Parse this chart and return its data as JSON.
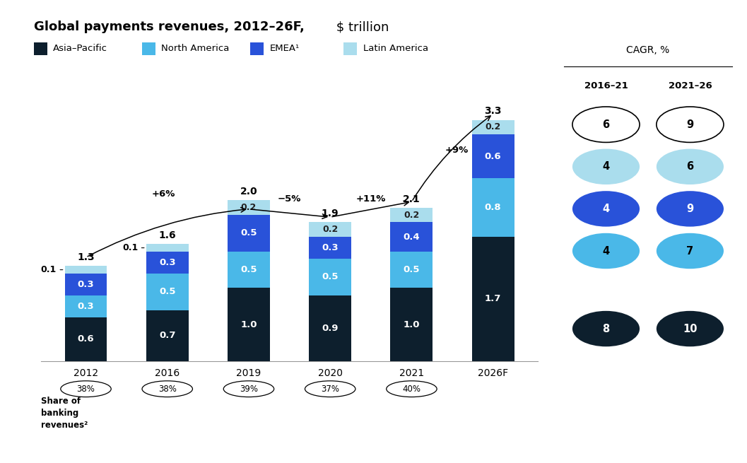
{
  "title_bold": "Global payments revenues, 2012–26F,",
  "title_normal": " $ trillion",
  "categories": [
    "2012",
    "2016",
    "2019",
    "2020",
    "2021",
    "2026F"
  ],
  "asia_pacific": [
    0.6,
    0.7,
    1.0,
    0.9,
    1.0,
    1.7
  ],
  "north_america": [
    0.3,
    0.5,
    0.5,
    0.5,
    0.5,
    0.8
  ],
  "emea": [
    0.3,
    0.3,
    0.5,
    0.3,
    0.4,
    0.6
  ],
  "latin_america": [
    0.1,
    0.1,
    0.2,
    0.2,
    0.2,
    0.2
  ],
  "totals": [
    1.3,
    1.6,
    2.0,
    1.9,
    2.1,
    3.3
  ],
  "color_asia": "#0d1f2d",
  "color_north": "#4ab8e8",
  "color_emea": "#2952d9",
  "color_latin": "#aadded",
  "share_labels": [
    "38%",
    "38%",
    "39%",
    "37%",
    "40%"
  ],
  "legend_labels": [
    "Asia–Pacific",
    "North America",
    "EMEA¹",
    "Latin America"
  ],
  "cagr_title": "CAGR, %",
  "cagr_col1": "2016–21",
  "cagr_col2": "2021–26",
  "cagr_data": [
    {
      "label1": 6,
      "label2": 9,
      "color1": "#ffffff",
      "color2": "#ffffff",
      "text1": "#000000",
      "text2": "#000000",
      "border": true
    },
    {
      "label1": 4,
      "label2": 6,
      "color1": "#aadded",
      "color2": "#aadded",
      "text1": "#000000",
      "text2": "#000000",
      "border": false
    },
    {
      "label1": 4,
      "label2": 9,
      "color1": "#2952d9",
      "color2": "#2952d9",
      "text1": "#ffffff",
      "text2": "#ffffff",
      "border": false
    },
    {
      "label1": 4,
      "label2": 7,
      "color1": "#4ab8e8",
      "color2": "#4ab8e8",
      "text1": "#000000",
      "text2": "#000000",
      "border": false
    },
    {
      "label1": 8,
      "label2": 10,
      "color1": "#0d1f2d",
      "color2": "#0d1f2d",
      "text1": "#ffffff",
      "text2": "#ffffff",
      "border": false
    }
  ],
  "background_color": "#ffffff"
}
